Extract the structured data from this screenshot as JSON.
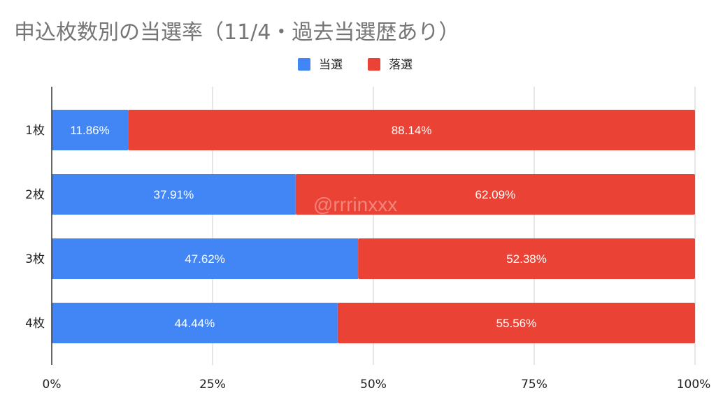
{
  "chart_data": {
    "type": "bar",
    "orientation": "horizontal",
    "stacked": true,
    "title": "申込枚数別の当選率（11/4・過去当選歴あり）",
    "categories": [
      "1枚",
      "2枚",
      "3枚",
      "4枚"
    ],
    "series": [
      {
        "name": "当選",
        "color": "#4285f4",
        "values": [
          11.86,
          37.91,
          47.62,
          44.44
        ],
        "labels": [
          "11.86%",
          "37.91%",
          "47.62%",
          "44.44%"
        ]
      },
      {
        "name": "落選",
        "color": "#ea4335",
        "values": [
          88.14,
          62.09,
          52.38,
          55.56
        ],
        "labels": [
          "88.14%",
          "62.09%",
          "52.38%",
          "55.56%"
        ]
      }
    ],
    "xlim": [
      0,
      100
    ],
    "x_ticks": [
      "0%",
      "25%",
      "50%",
      "75%",
      "100%"
    ],
    "x_tick_values": [
      0,
      25,
      50,
      75,
      100
    ],
    "grid": true,
    "legend_position": "top",
    "watermark": "@rrrinxxx"
  }
}
